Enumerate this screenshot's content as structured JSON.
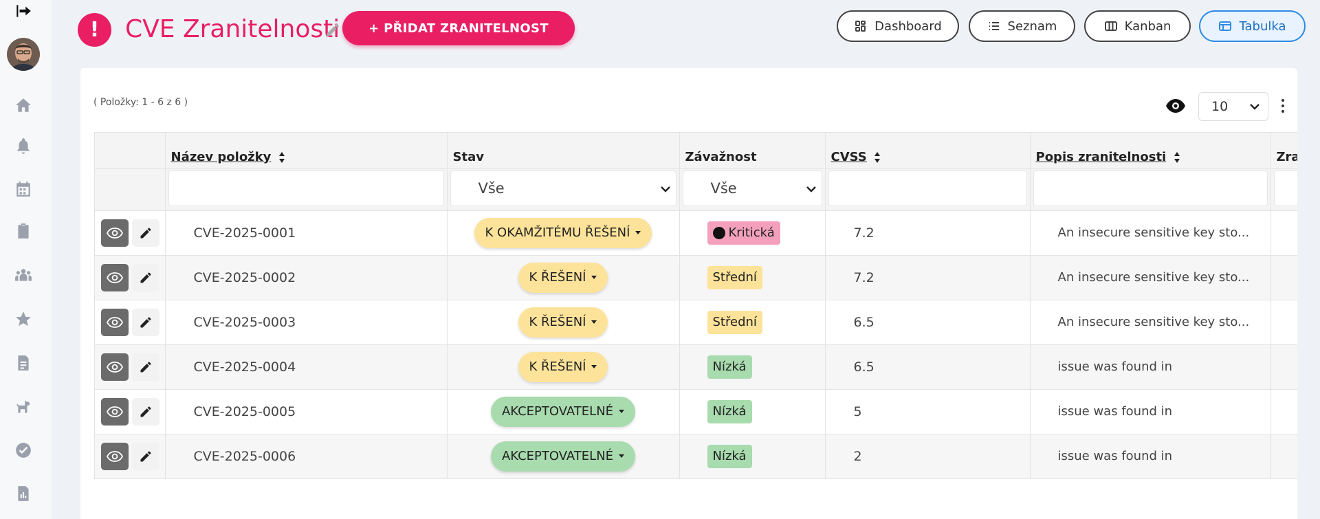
{
  "header": {
    "title": "CVE Zranitelnosti",
    "add_button": "+ PŘIDAT ZRANITELNOST",
    "views": [
      {
        "label": "Dashboard",
        "active": false
      },
      {
        "label": "Seznam",
        "active": false
      },
      {
        "label": "Kanban",
        "active": false
      },
      {
        "label": "Tabulka",
        "active": true
      }
    ]
  },
  "sidebar": {
    "icons": [
      "logout-icon",
      "avatar",
      "home-icon",
      "bell-icon",
      "calendar-icon",
      "clipboard-check-icon",
      "team-icon",
      "star-icon",
      "document-icon",
      "dog-icon",
      "check-circle-icon",
      "report-icon"
    ]
  },
  "list": {
    "items_count": "( Položky: 1 - 6 z 6 )",
    "page_size": "10"
  },
  "table": {
    "columns": {
      "name": "Název položky",
      "status": "Stav",
      "severity": "Závažnost",
      "cvss": "CVSS",
      "description": "Popis zranitelnosti",
      "extra": "Zra"
    },
    "filters": {
      "status": "Vše",
      "severity": "Vše"
    },
    "rows": [
      {
        "name": "CVE-2025-0001",
        "status": "K OKAMŽITÉMU ŘEŠENÍ",
        "severity": "Kritická",
        "cvss": "7.2",
        "description": "An insecure sensitive key sto..."
      },
      {
        "name": "CVE-2025-0002",
        "status": "K ŘEŠENÍ",
        "severity": "Střední",
        "cvss": "7.2",
        "description": "An insecure sensitive key sto..."
      },
      {
        "name": "CVE-2025-0003",
        "status": "K ŘEŠENÍ",
        "severity": "Střední",
        "cvss": "6.5",
        "description": "An insecure sensitive key sto..."
      },
      {
        "name": "CVE-2025-0004",
        "status": "K ŘEŠENÍ",
        "severity": "Nízká",
        "cvss": "6.5",
        "description": "issue was found in"
      },
      {
        "name": "CVE-2025-0005",
        "status": "AKCEPTOVATELNÉ",
        "severity": "Nízká",
        "cvss": "5",
        "description": "issue was found in"
      },
      {
        "name": "CVE-2025-0006",
        "status": "AKCEPTOVATELNÉ",
        "severity": "Nízká",
        "cvss": "2",
        "description": "issue was found in"
      }
    ]
  },
  "colors": {
    "accent": "#e91e63",
    "status_urgent": "#f7a3bf",
    "status_todo": "#fde39a",
    "status_accepted": "#a8dbae",
    "severity_critical": "#f4a0bd",
    "severity_medium": "#fde39a",
    "severity_low": "#a8dbae",
    "active_view": "#2e8be5"
  }
}
